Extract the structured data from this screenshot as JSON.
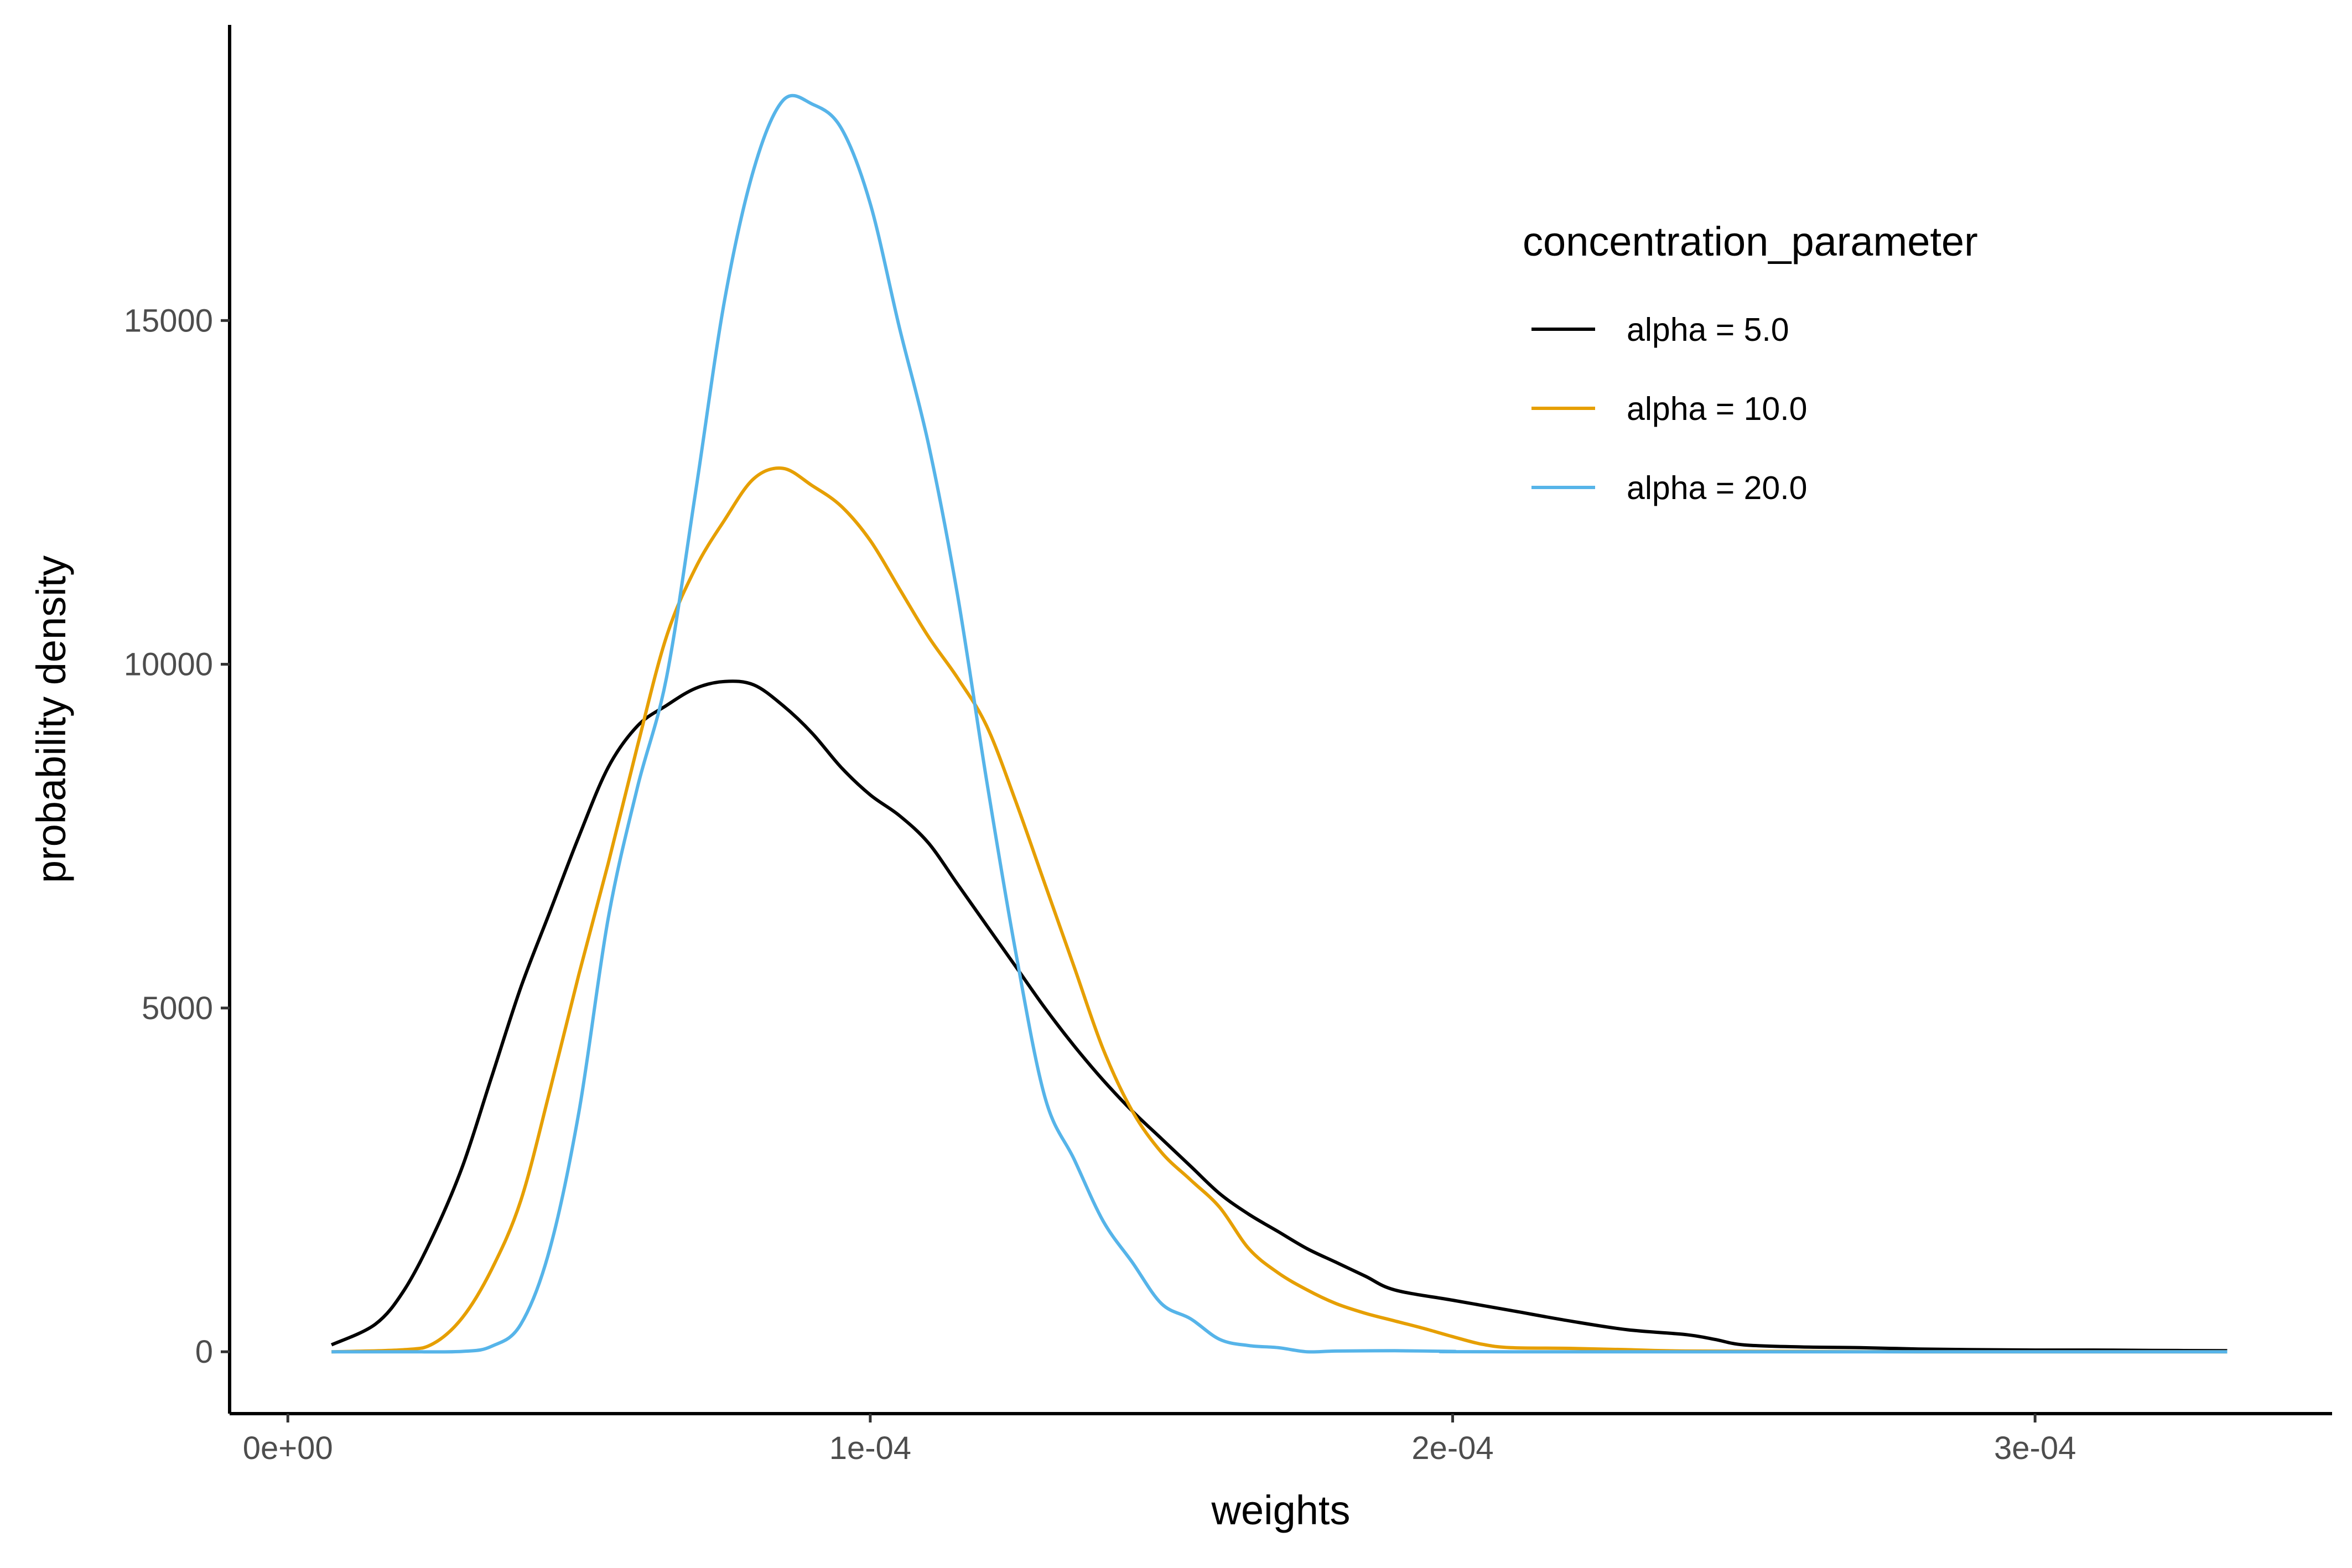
{
  "chart_data": {
    "type": "line",
    "title": "",
    "xlabel": "weights",
    "ylabel": "probability density",
    "xlim": [
      -1e-05,
      0.000351
    ],
    "ylim": [
      -900,
      19300
    ],
    "x_ticks": [
      {
        "value": 0,
        "label": "0e+00"
      },
      {
        "value": 0.0001,
        "label": "1e-04"
      },
      {
        "value": 0.0002,
        "label": "2e-04"
      },
      {
        "value": 0.0003,
        "label": "3e-04"
      }
    ],
    "y_ticks": [
      {
        "value": 0,
        "label": "0"
      },
      {
        "value": 5000,
        "label": "5000"
      },
      {
        "value": 10000,
        "label": "10000"
      },
      {
        "value": 15000,
        "label": "15000"
      }
    ],
    "grid": false,
    "legend": {
      "title": "concentration_parameter",
      "position": "top-right"
    },
    "series": [
      {
        "name": "alpha = 5.0",
        "color": "#000000",
        "points": [
          [
            7.5e-06,
            100
          ],
          [
            1.5e-05,
            400
          ],
          [
            2e-05,
            900
          ],
          [
            2.5e-05,
            1700
          ],
          [
            3e-05,
            2700
          ],
          [
            3.5e-05,
            4000
          ],
          [
            4e-05,
            5300
          ],
          [
            4.5e-05,
            6400
          ],
          [
            5e-05,
            7500
          ],
          [
            5.5e-05,
            8500
          ],
          [
            6e-05,
            9100
          ],
          [
            6.5e-05,
            9400
          ],
          [
            7e-05,
            9650
          ],
          [
            7.5e-05,
            9750
          ],
          [
            8e-05,
            9700
          ],
          [
            8.5e-05,
            9400
          ],
          [
            9e-05,
            9000
          ],
          [
            9.5e-05,
            8500
          ],
          [
            0.0001,
            8100
          ],
          [
            0.000105,
            7800
          ],
          [
            0.00011,
            7400
          ],
          [
            0.000115,
            6800
          ],
          [
            0.00012,
            6200
          ],
          [
            0.000125,
            5600
          ],
          [
            0.00013,
            5000
          ],
          [
            0.000135,
            4450
          ],
          [
            0.00014,
            3950
          ],
          [
            0.000145,
            3500
          ],
          [
            0.00015,
            3100
          ],
          [
            0.000155,
            2700
          ],
          [
            0.00016,
            2300
          ],
          [
            0.000165,
            2000
          ],
          [
            0.00017,
            1750
          ],
          [
            0.000175,
            1500
          ],
          [
            0.00018,
            1300
          ],
          [
            0.000185,
            1100
          ],
          [
            0.00019,
            900
          ],
          [
            0.0002,
            750
          ],
          [
            0.00021,
            600
          ],
          [
            0.00022,
            450
          ],
          [
            0.00023,
            320
          ],
          [
            0.00024,
            250
          ],
          [
            0.000245,
            180
          ],
          [
            0.00025,
            100
          ],
          [
            0.00026,
            70
          ],
          [
            0.00027,
            60
          ],
          [
            0.00028,
            40
          ],
          [
            0.00029,
            30
          ],
          [
            0.0003,
            25
          ],
          [
            0.00031,
            25
          ],
          [
            0.00032,
            20
          ],
          [
            0.000333,
            15
          ]
        ]
      },
      {
        "name": "alpha = 10.0",
        "color": "#E69F00",
        "points": [
          [
            7.5e-06,
            0
          ],
          [
            2e-05,
            30
          ],
          [
            2.5e-05,
            120
          ],
          [
            3e-05,
            500
          ],
          [
            3.5e-05,
            1200
          ],
          [
            4e-05,
            2200
          ],
          [
            4.5e-05,
            3800
          ],
          [
            5e-05,
            5500
          ],
          [
            5.5e-05,
            7100
          ],
          [
            6e-05,
            8800
          ],
          [
            6.5e-05,
            10400
          ],
          [
            7e-05,
            11400
          ],
          [
            7.5e-05,
            12100
          ],
          [
            8e-05,
            12700
          ],
          [
            8.5e-05,
            12850
          ],
          [
            9e-05,
            12600
          ],
          [
            9.5e-05,
            12300
          ],
          [
            0.0001,
            11800
          ],
          [
            0.000105,
            11100
          ],
          [
            0.00011,
            10400
          ],
          [
            0.000115,
            9800
          ],
          [
            0.00012,
            9100
          ],
          [
            0.000125,
            8000
          ],
          [
            0.00013,
            6800
          ],
          [
            0.000135,
            5600
          ],
          [
            0.00014,
            4400
          ],
          [
            0.000145,
            3500
          ],
          [
            0.00015,
            2900
          ],
          [
            0.000155,
            2500
          ],
          [
            0.00016,
            2100
          ],
          [
            0.000165,
            1500
          ],
          [
            0.00017,
            1150
          ],
          [
            0.000175,
            900
          ],
          [
            0.00018,
            700
          ],
          [
            0.000185,
            560
          ],
          [
            0.00019,
            450
          ],
          [
            0.000195,
            340
          ],
          [
            0.0002,
            220
          ],
          [
            0.000205,
            110
          ],
          [
            0.00021,
            60
          ],
          [
            0.00022,
            50
          ],
          [
            0.00023,
            30
          ],
          [
            0.00024,
            10
          ],
          [
            0.00026,
            5
          ],
          [
            0.00028,
            0
          ],
          [
            0.000333,
            0
          ]
        ]
      },
      {
        "name": "alpha = 20.0",
        "color": "#56B4E9",
        "points": [
          [
            7.5e-06,
            0
          ],
          [
            2e-05,
            0
          ],
          [
            3e-05,
            5
          ],
          [
            3.5e-05,
            80
          ],
          [
            4e-05,
            400
          ],
          [
            4.5e-05,
            1500
          ],
          [
            5e-05,
            3500
          ],
          [
            5.5e-05,
            6300
          ],
          [
            6e-05,
            8200
          ],
          [
            6.5e-05,
            9800
          ],
          [
            7e-05,
            12500
          ],
          [
            7.5e-05,
            15300
          ],
          [
            8e-05,
            17200
          ],
          [
            8.5e-05,
            18200
          ],
          [
            9e-05,
            18150
          ],
          [
            9.5e-05,
            17800
          ],
          [
            0.0001,
            16700
          ],
          [
            0.000105,
            14900
          ],
          [
            0.00011,
            13200
          ],
          [
            0.000115,
            11000
          ],
          [
            0.00012,
            8300
          ],
          [
            0.000125,
            5800
          ],
          [
            0.00013,
            3700
          ],
          [
            0.000135,
            2800
          ],
          [
            0.00014,
            1900
          ],
          [
            0.000145,
            1300
          ],
          [
            0.00015,
            700
          ],
          [
            0.000155,
            480
          ],
          [
            0.00016,
            180
          ],
          [
            0.000165,
            90
          ],
          [
            0.00017,
            60
          ],
          [
            0.000175,
            0
          ],
          [
            0.00018,
            10
          ],
          [
            0.00019,
            15
          ],
          [
            0.0002,
            5
          ],
          [
            0.00021,
            0
          ],
          [
            0.000333,
            0
          ]
        ]
      }
    ]
  }
}
